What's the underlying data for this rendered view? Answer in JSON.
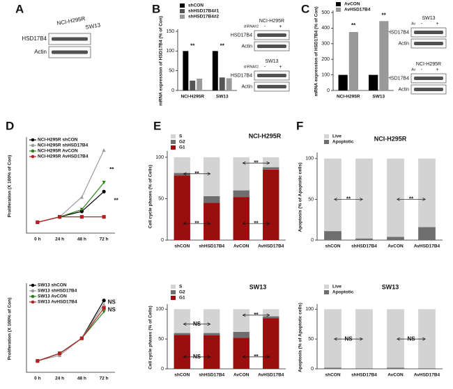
{
  "panels": [
    "A",
    "B",
    "C",
    "D",
    "E",
    "F"
  ],
  "blots": [
    {
      "lanes": [
        "NCI-H295R",
        "SW13"
      ],
      "rows": [
        "HSD17B4",
        "Actin"
      ]
    },
    {
      "title": "NCI-H295R",
      "rows": [
        "HSD17B4",
        "Actin"
      ],
      "header": "shRNA#2",
      "lanes": [
        "-",
        "+"
      ]
    },
    {
      "title": "SW13",
      "header": "shRNA#2",
      "lanes": [
        "-",
        "+"
      ],
      "rows": [
        "HSD17B4",
        "Actin"
      ]
    },
    {
      "title": "SW13",
      "header": "Av",
      "lanes": [
        "-",
        "+"
      ],
      "rows": [
        "HSD17B4",
        "Actin"
      ]
    },
    {
      "title": "NCI-H295R",
      "header": "Av",
      "lanes": [
        "-",
        "+"
      ],
      "rows": [
        "HSD17B4",
        "Actin"
      ]
    }
  ],
  "chart_data": [
    {
      "type": "bar",
      "ylabel": "mRNA expression of HSD17B4 (% of Con)",
      "categories": [
        "NCI-H295R",
        "SW13"
      ],
      "series": [
        {
          "name": "shCON",
          "color": "#000000",
          "values": [
            100,
            100
          ]
        },
        {
          "name": "shHSD17B4#1",
          "color": "#555555",
          "values": [
            25,
            33
          ]
        },
        {
          "name": "shHSD17B4#2",
          "color": "#9a9a9a",
          "values": [
            30,
            31
          ]
        }
      ],
      "ylim": [
        0,
        150
      ],
      "yticks": [
        0,
        50,
        100,
        150
      ],
      "legend": "upper left",
      "annotations": [
        "**",
        "**"
      ]
    },
    {
      "type": "bar",
      "ylabel": "mRNA expression of HSD17B4 (% of Con)",
      "categories": [
        "NCI-H295R",
        "SW13"
      ],
      "series": [
        {
          "name": "AvCON",
          "color": "#000000",
          "values": [
            100,
            100
          ]
        },
        {
          "name": "AvHSD17B4",
          "color": "#999999",
          "values": [
            375,
            445
          ]
        }
      ],
      "ylim": [
        0,
        500
      ],
      "yticks": [
        0,
        100,
        200,
        300,
        400,
        500
      ],
      "legend": "upper left",
      "annotations": [
        "**",
        "**"
      ]
    },
    {
      "type": "line",
      "ylabel": "Proliferation (X 100% of Con)",
      "categories": [
        "0 h",
        "24 h",
        "48 h",
        "72 h"
      ],
      "series": [
        {
          "name": "NCI-H295R shCON",
          "color": "#000000",
          "marker": "circle",
          "values": [
            1,
            1.15,
            1.3,
            1.85
          ]
        },
        {
          "name": "NCI-H295R shHSD17B4",
          "color": "#999999",
          "marker": "triangle",
          "values": [
            1,
            1.15,
            1.7,
            3.0
          ]
        },
        {
          "name": "NCI-H295R AvCON",
          "color": "#2e7d1e",
          "marker": "triangle-down",
          "values": [
            1,
            1.15,
            1.35,
            2.1
          ]
        },
        {
          "name": "NCI-H295R AvHSD17B4",
          "color": "#b22222",
          "marker": "square",
          "values": [
            1,
            1.15,
            1.15,
            1.15
          ]
        }
      ],
      "ylim": [
        0.7,
        3.3
      ],
      "legend": "upper left",
      "annotations": [
        "**",
        "**"
      ]
    },
    {
      "type": "line",
      "ylabel": "Proliferation (X 100% of Con)",
      "categories": [
        "0 h",
        "24 h",
        "48 h",
        "72 h"
      ],
      "series": [
        {
          "name": "SW13 shCON",
          "color": "#000000",
          "marker": "circle",
          "values": [
            1,
            1.2,
            1.6,
            2.6
          ]
        },
        {
          "name": "SW13 shHSD17B4",
          "color": "#999999",
          "marker": "triangle",
          "values": [
            1,
            1.15,
            1.6,
            2.5
          ]
        },
        {
          "name": "SW13 AvCON",
          "color": "#2e7d1e",
          "marker": "triangle-down",
          "values": [
            1,
            1.2,
            1.6,
            2.3
          ]
        },
        {
          "name": "SW13 AvHSD17B4",
          "color": "#b22222",
          "marker": "square",
          "values": [
            1,
            1.2,
            1.6,
            2.4
          ]
        }
      ],
      "ylim": [
        0.7,
        3.0
      ],
      "legend": "upper left",
      "annotations": [
        "NS",
        "NS"
      ]
    },
    {
      "type": "stacked_bar",
      "title": "NCI-H295R",
      "ylabel": "Cell cycle phases (% of Cells)",
      "categories": [
        "shCON",
        "shHSD17B4",
        "AvCON",
        "AvHSD17B4"
      ],
      "series": [
        {
          "name": "G1",
          "color": "#9b0e0e",
          "values": [
            78,
            45,
            52,
            85
          ]
        },
        {
          "name": "G2",
          "color": "#6e6e6e",
          "values": [
            3,
            8,
            8,
            3
          ]
        },
        {
          "name": "S",
          "color": "#d3d3d3",
          "values": [
            19,
            47,
            40,
            12
          ]
        }
      ],
      "ylim": [
        0,
        105
      ],
      "yticks": [
        0,
        50,
        100
      ],
      "legend": "upper left",
      "annotations": [
        "**",
        "**",
        "**",
        "**"
      ]
    },
    {
      "type": "stacked_bar",
      "title": "SW13",
      "ylabel": "Cell cycle phases (% of Cells)",
      "categories": [
        "shCON",
        "shHSD17B4",
        "AvCON",
        "AvHSD17B4"
      ],
      "series": [
        {
          "name": "G1",
          "color": "#9b0e0e",
          "values": [
            57,
            56,
            52,
            85
          ]
        },
        {
          "name": "G2",
          "color": "#6e6e6e",
          "values": [
            3,
            4,
            10,
            3
          ]
        },
        {
          "name": "S",
          "color": "#d3d3d3",
          "values": [
            40,
            40,
            38,
            12
          ]
        }
      ],
      "ylim": [
        0,
        105
      ],
      "yticks": [
        0,
        50,
        100
      ],
      "legend": "upper left",
      "annotations": [
        "NS",
        "**",
        "NS",
        "**"
      ]
    },
    {
      "type": "stacked_bar",
      "title": "NCI-H295R",
      "ylabel": "Apoptosis (% of Apoptotic cells)",
      "categories": [
        "shCON",
        "shHSD17B4",
        "AvCON",
        "AvHSD17B4"
      ],
      "series": [
        {
          "name": "Apoptotic",
          "color": "#6e6e6e",
          "values": [
            11,
            2,
            4,
            16
          ]
        },
        {
          "name": "Live",
          "color": "#d3d3d3",
          "values": [
            89,
            98,
            96,
            84
          ]
        }
      ],
      "ylim": [
        0,
        105
      ],
      "yticks": [
        0,
        50,
        100
      ],
      "legend": "upper left",
      "annotations": [
        "**",
        "**"
      ]
    },
    {
      "type": "stacked_bar",
      "title": "SW13",
      "ylabel": "Apoptosis (% of Apoptotic cells)",
      "categories": [
        "shCON",
        "shHSD17B4",
        "AvCON",
        "AvHSD17B4"
      ],
      "series": [
        {
          "name": "Apoptotic",
          "color": "#6e6e6e",
          "values": [
            2,
            1,
            2,
            1
          ]
        },
        {
          "name": "Live",
          "color": "#d3d3d3",
          "values": [
            98,
            99,
            98,
            99
          ]
        }
      ],
      "ylim": [
        0,
        105
      ],
      "yticks": [
        0,
        50,
        100
      ],
      "legend": "upper left",
      "annotations": [
        "NS",
        "NS"
      ]
    }
  ]
}
